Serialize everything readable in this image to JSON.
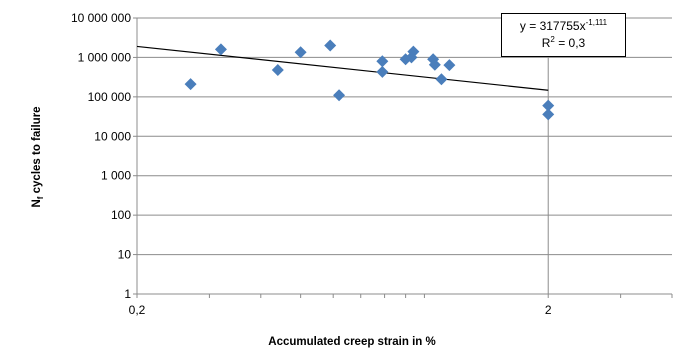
{
  "chart_data": {
    "type": "scatter",
    "title": "",
    "xlabel": "Accumulated  creep strain in %",
    "ylabel_main": "N",
    "ylabel_sub": "f",
    "ylabel_rest": " cycles to failure",
    "xscale": "log",
    "yscale": "log",
    "xlim": [
      0.2,
      4
    ],
    "ylim": [
      1,
      10000000
    ],
    "x_ticks": [
      {
        "value": 0.2,
        "label": "0,2"
      },
      {
        "value": 2,
        "label": "2"
      }
    ],
    "y_ticks": [
      {
        "value": 1,
        "label": "1"
      },
      {
        "value": 10,
        "label": "10"
      },
      {
        "value": 100,
        "label": "100"
      },
      {
        "value": 1000,
        "label": "1 000"
      },
      {
        "value": 10000,
        "label": "10 000"
      },
      {
        "value": 100000,
        "label": "100 000"
      },
      {
        "value": 1000000,
        "label": "1 000 000"
      },
      {
        "value": 10000000,
        "label": "10 000 000"
      }
    ],
    "grid": true,
    "marker_color": "#4a7ebb",
    "series": [
      {
        "points": [
          {
            "x": 0.27,
            "y": 210000
          },
          {
            "x": 0.32,
            "y": 1600000
          },
          {
            "x": 0.44,
            "y": 480000
          },
          {
            "x": 0.5,
            "y": 1350000
          },
          {
            "x": 0.59,
            "y": 2000000
          },
          {
            "x": 0.62,
            "y": 110000
          },
          {
            "x": 0.79,
            "y": 800000
          },
          {
            "x": 0.79,
            "y": 430000
          },
          {
            "x": 0.9,
            "y": 900000
          },
          {
            "x": 0.93,
            "y": 1000000
          },
          {
            "x": 0.94,
            "y": 1400000
          },
          {
            "x": 1.05,
            "y": 900000
          },
          {
            "x": 1.06,
            "y": 650000
          },
          {
            "x": 1.1,
            "y": 280000
          },
          {
            "x": 1.15,
            "y": 640000
          },
          {
            "x": 2.0,
            "y": 60000
          },
          {
            "x": 2.0,
            "y": 36000
          }
        ]
      }
    ],
    "trendline": {
      "type": "power",
      "coefficient": 317755,
      "exponent": -1.111,
      "x_range": [
        0.2,
        2.0
      ],
      "r2": "0,3"
    },
    "equation": {
      "prefix": "y = 317755x",
      "exponent_text": "-1,111",
      "r2_label": "R",
      "r2_sup": "2",
      "r2_value": " = 0,3"
    }
  }
}
